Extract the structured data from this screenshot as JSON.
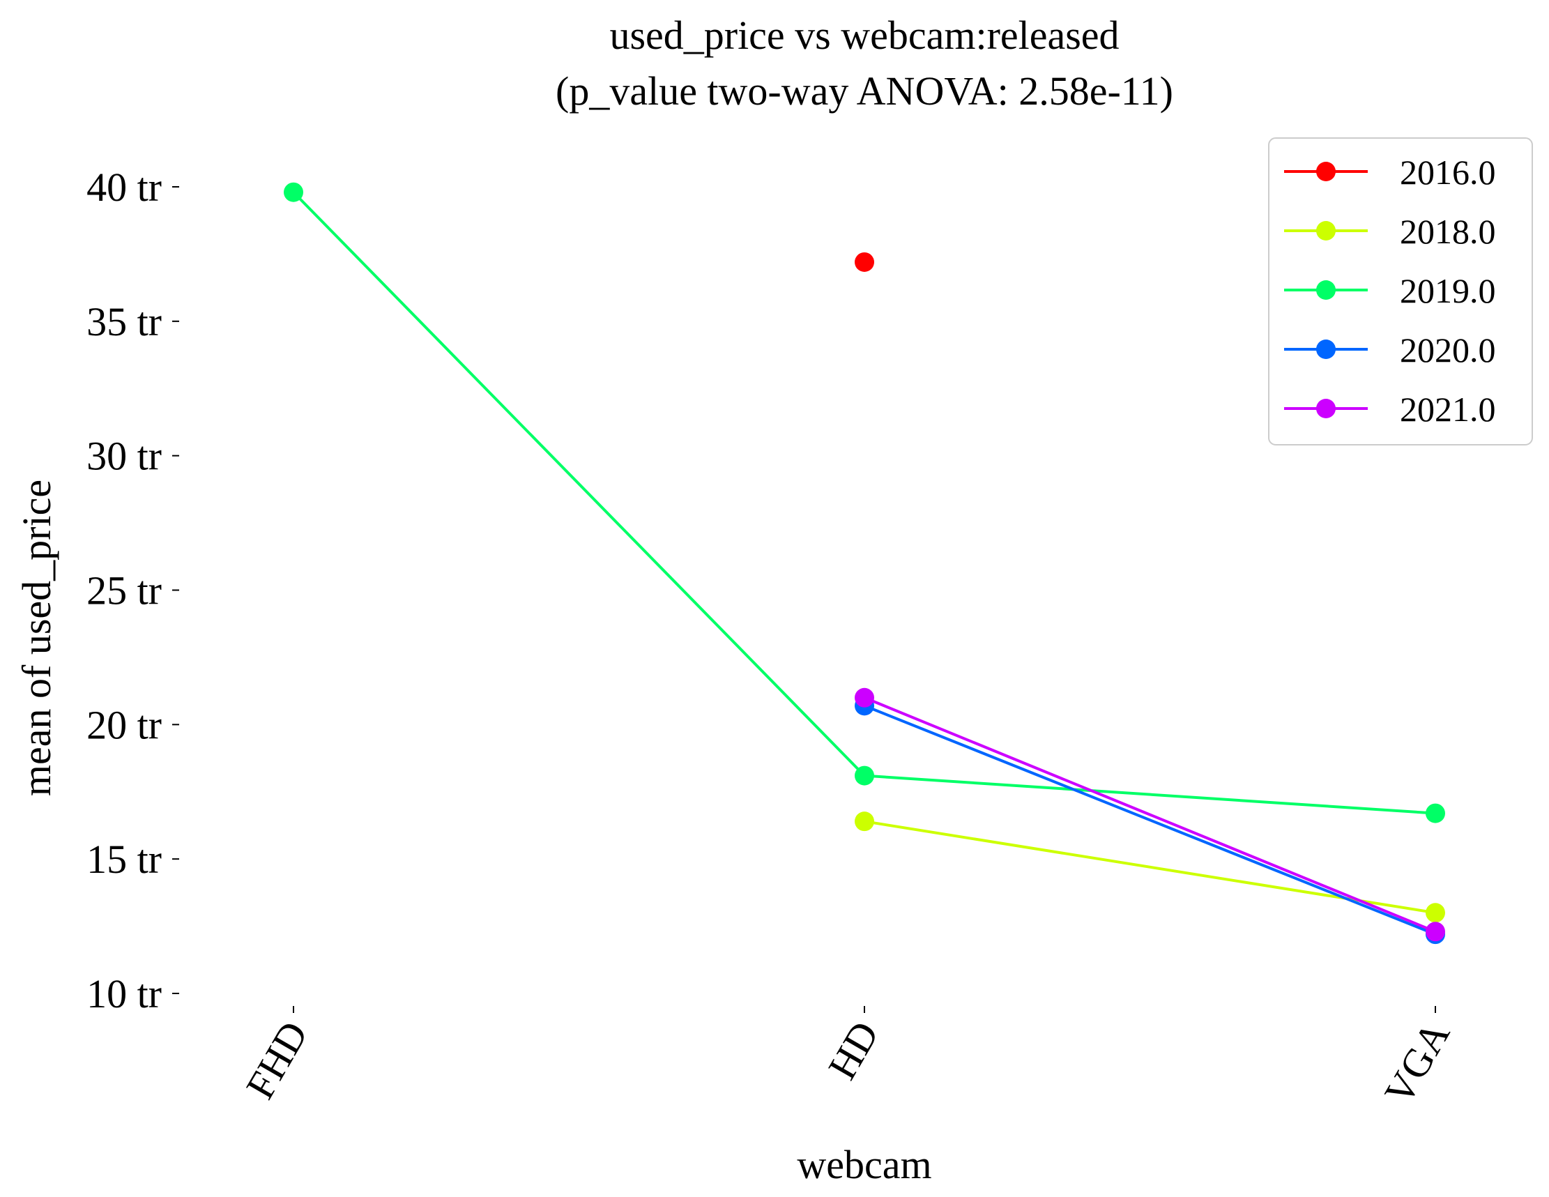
{
  "chart_data": {
    "type": "line",
    "title": "used_price vs webcam:released",
    "subtitle": "(p_value two-way ANOVA: 2.58e-11)",
    "xlabel": "webcam",
    "ylabel": "mean of used_price",
    "categories": [
      "FHD",
      "HD",
      "VGA"
    ],
    "y_ticks": [
      {
        "value": 10,
        "label": "10 tr"
      },
      {
        "value": 15,
        "label": "15 tr"
      },
      {
        "value": 20,
        "label": "20 tr"
      },
      {
        "value": 25,
        "label": "25 tr"
      },
      {
        "value": 30,
        "label": "30 tr"
      },
      {
        "value": 35,
        "label": "35 tr"
      },
      {
        "value": 40,
        "label": "40 tr"
      }
    ],
    "ylim": [
      9.6,
      41.6
    ],
    "grid": false,
    "legend_position": "top-right",
    "series": [
      {
        "name": "2016.0",
        "color": "#ff0000",
        "values": [
          null,
          37.2,
          null
        ]
      },
      {
        "name": "2018.0",
        "color": "#ccff00",
        "values": [
          null,
          16.4,
          13.0
        ]
      },
      {
        "name": "2019.0",
        "color": "#00ff66",
        "values": [
          39.8,
          18.1,
          16.7
        ]
      },
      {
        "name": "2020.0",
        "color": "#0066ff",
        "values": [
          null,
          20.7,
          12.2
        ]
      },
      {
        "name": "2021.0",
        "color": "#cc00ff",
        "values": [
          null,
          21.0,
          12.3
        ]
      }
    ]
  }
}
